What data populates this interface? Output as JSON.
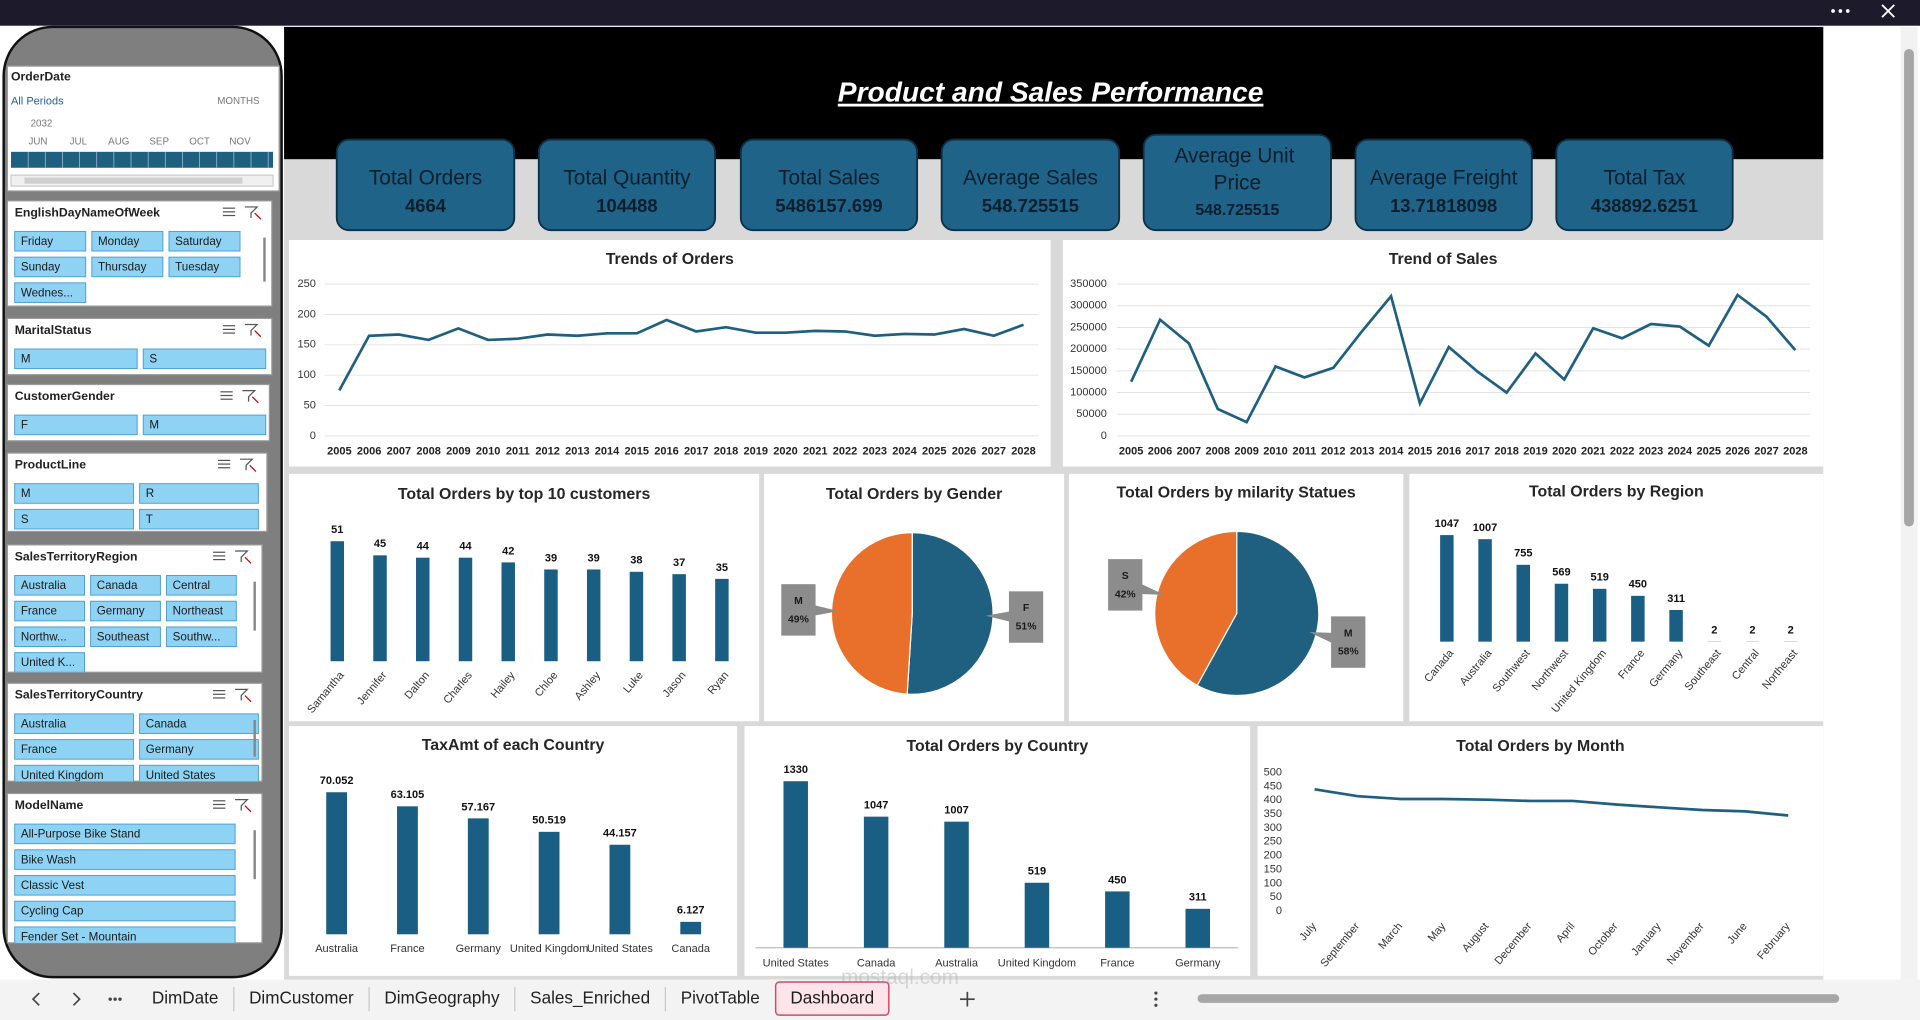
{
  "title": "Product and Sales Performance",
  "kpis": [
    {
      "label": "Total Orders",
      "value": 4664
    },
    {
      "label": "Total Quantity",
      "value": 104488
    },
    {
      "label": "Total Sales",
      "value": 5486157.699
    },
    {
      "label": "Average Sales",
      "value": 548.725515
    },
    {
      "label": "Average Unit Price",
      "value": 548.725515
    },
    {
      "label": "Average Freight",
      "value": 13.71818098
    },
    {
      "label": "Total Tax",
      "value": 438892.6251
    }
  ],
  "order_date_slicer": {
    "title": "OrderDate",
    "all": "All Periods",
    "level": "MONTHS",
    "year": "2032",
    "months": [
      "JUN",
      "JUL",
      "AUG",
      "SEP",
      "OCT",
      "NOV"
    ]
  },
  "slicers": [
    {
      "title": "EnglishDayNameOfWeek",
      "items": [
        "Friday",
        "Monday",
        "Saturday",
        "Sunday",
        "Thursday",
        "Tuesday",
        "Wednes..."
      ]
    },
    {
      "title": "MaritalStatus",
      "items": [
        "M",
        "S"
      ]
    },
    {
      "title": "CustomerGender",
      "items": [
        "F",
        "M"
      ]
    },
    {
      "title": "ProductLine",
      "items": [
        "M",
        "R",
        "S",
        "T"
      ]
    },
    {
      "title": "SalesTerritoryRegion",
      "items": [
        "Australia",
        "Canada",
        "Central",
        "France",
        "Germany",
        "Northeast",
        "Northw...",
        "Southeast",
        "Southw...",
        "United K..."
      ]
    },
    {
      "title": "SalesTerritoryCountry",
      "items": [
        "Australia",
        "Canada",
        "France",
        "Germany",
        "United Kingdom",
        "United States"
      ]
    },
    {
      "title": "ModelName",
      "items": [
        "All-Purpose Bike Stand",
        "Bike Wash",
        "Classic Vest",
        "Cycling Cap",
        "Fender Set - Mountain"
      ]
    }
  ],
  "chart_data": [
    {
      "type": "line",
      "title": "Trends of Orders",
      "categories": [
        "2005",
        "2006",
        "2007",
        "2008",
        "2009",
        "2010",
        "2011",
        "2012",
        "2013",
        "2014",
        "2015",
        "2016",
        "2017",
        "2018",
        "2019",
        "2020",
        "2021",
        "2022",
        "2023",
        "2024",
        "2025",
        "2026",
        "2027",
        "2028"
      ],
      "values": [
        75,
        165,
        167,
        158,
        177,
        158,
        160,
        167,
        165,
        169,
        169,
        191,
        172,
        179,
        170,
        170,
        173,
        172,
        165,
        168,
        167,
        176,
        165,
        183
      ],
      "color": "#1f5f80",
      "ylim": [
        0,
        250
      ],
      "yticks": [
        0,
        50,
        100,
        150,
        200,
        250
      ],
      "grid": true
    },
    {
      "type": "line",
      "title": "Trend of Sales",
      "categories": [
        "2005",
        "2006",
        "2007",
        "2008",
        "2009",
        "2010",
        "2011",
        "2012",
        "2013",
        "2014",
        "2015",
        "2016",
        "2017",
        "2018",
        "2019",
        "2020",
        "2021",
        "2022",
        "2023",
        "2024",
        "2025",
        "2026",
        "2027",
        "2028"
      ],
      "values": [
        125000,
        268000,
        213000,
        62000,
        32000,
        160000,
        135000,
        157000,
        242000,
        322000,
        75000,
        205000,
        148000,
        100000,
        190000,
        130000,
        248000,
        225000,
        258000,
        252000,
        208000,
        325000,
        275000,
        198000
      ],
      "color": "#1f5f80",
      "ylim": [
        0,
        350000
      ],
      "yticks": [
        0,
        50000,
        100000,
        150000,
        200000,
        250000,
        300000,
        350000
      ],
      "grid": true
    },
    {
      "type": "bar",
      "title": "Total Orders by top 10 customers",
      "categories": [
        "Samantha",
        "Jennifer",
        "Dalton",
        "Charles",
        "Hailey",
        "Chloe",
        "Ashley",
        "Luke",
        "Jason",
        "Ryan"
      ],
      "values": [
        51,
        45,
        44,
        44,
        42,
        39,
        39,
        38,
        37,
        35
      ],
      "color": "#1a5e84"
    },
    {
      "type": "pie",
      "title": "Total Orders by Gender",
      "categories": [
        "F",
        "M"
      ],
      "values": [
        51,
        49
      ],
      "value_labels": [
        "51%",
        "49%"
      ],
      "colors": [
        "#1f5f80",
        "#e8702a"
      ]
    },
    {
      "type": "pie",
      "title": "Total Orders by milarity Statues",
      "categories": [
        "M",
        "S"
      ],
      "values": [
        58,
        42
      ],
      "value_labels": [
        "58%",
        "42%"
      ],
      "colors": [
        "#1f5f80",
        "#e8702a"
      ]
    },
    {
      "type": "bar",
      "title": "Total Orders by Region",
      "categories": [
        "Canada",
        "Australia",
        "Southwest",
        "Northwest",
        "United Kingdom",
        "France",
        "Germany",
        "Southeast",
        "Central",
        "Northeast"
      ],
      "values": [
        1047,
        1007,
        755,
        569,
        519,
        450,
        311,
        2,
        2,
        2
      ],
      "color": "#1a5e84"
    },
    {
      "type": "bar",
      "title": "TaxAmt of each Country",
      "categories": [
        "Australia",
        "France",
        "Germany",
        "United Kingdom",
        "United States",
        "Canada"
      ],
      "values": [
        70.052,
        63.105,
        57.167,
        50.519,
        44.157,
        6.127
      ],
      "color": "#1a5e84"
    },
    {
      "type": "bar",
      "title": "Total Orders by Country",
      "categories": [
        "United States",
        "Canada",
        "Australia",
        "United Kingdom",
        "France",
        "Germany"
      ],
      "values": [
        1330,
        1047,
        1007,
        519,
        450,
        311
      ],
      "color": "#1a5e84"
    },
    {
      "type": "line",
      "title": "Total Orders by Month",
      "categories": [
        "July",
        "September",
        "March",
        "May",
        "August",
        "December",
        "April",
        "October",
        "January",
        "November",
        "June",
        "February"
      ],
      "values": [
        440,
        415,
        405,
        405,
        402,
        398,
        398,
        385,
        375,
        365,
        360,
        345
      ],
      "color": "#1f5f80",
      "ylim": [
        0,
        500
      ],
      "yticks": [
        0,
        50,
        100,
        150,
        200,
        250,
        300,
        350,
        400,
        450,
        500
      ],
      "grid": false
    }
  ],
  "tabs": [
    "DimDate",
    "DimCustomer",
    "DimGeography",
    "Sales_Enriched",
    "PivotTable",
    "Dashboard"
  ],
  "active_tab": 5,
  "watermark": "mostaql.com"
}
